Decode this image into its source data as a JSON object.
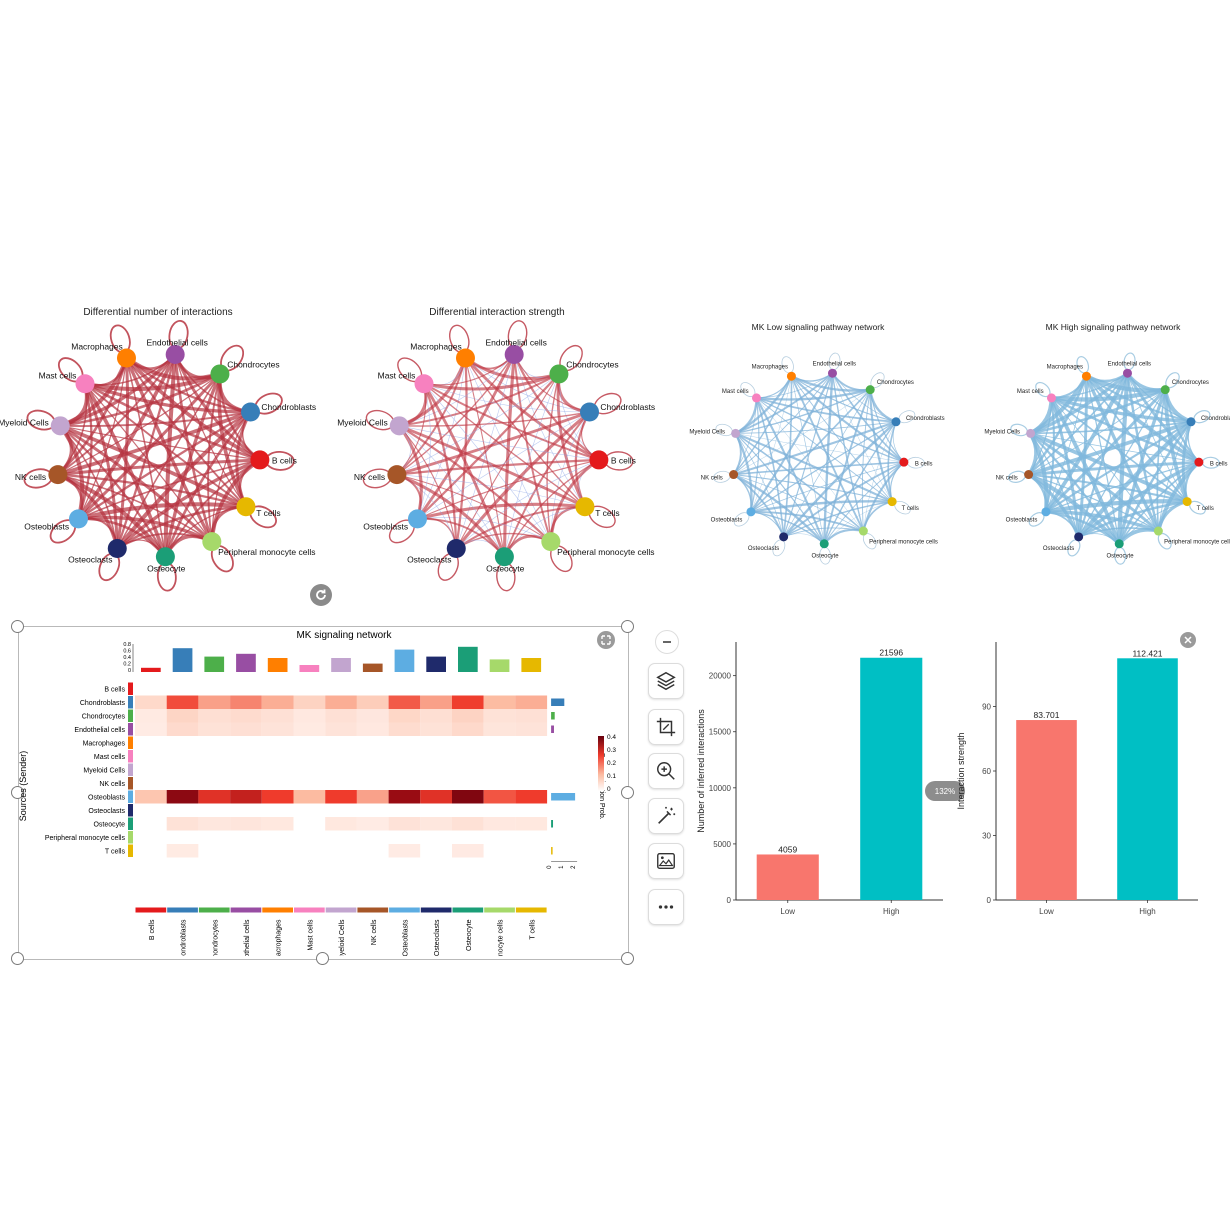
{
  "network1": {
    "title": "Differential number of interactions"
  },
  "network2": {
    "title": "Differential interaction strength"
  },
  "network3": {
    "title": "MK Low signaling pathway network"
  },
  "network4": {
    "title": "MK High signaling pathway network"
  },
  "cell_types": [
    {
      "name": "B cells",
      "color": "#e41a1c"
    },
    {
      "name": "Chondroblasts",
      "color": "#377eb8"
    },
    {
      "name": "Chondrocytes",
      "color": "#4daf4a"
    },
    {
      "name": "Endothelial cells",
      "color": "#984ea3"
    },
    {
      "name": "Macrophages",
      "color": "#ff7f00"
    },
    {
      "name": "Mast cells",
      "color": "#f781bf"
    },
    {
      "name": "Myeloid Cells",
      "color": "#c2a5cf"
    },
    {
      "name": "NK cells",
      "color": "#a65628"
    },
    {
      "name": "Osteoblasts",
      "color": "#5dade2"
    },
    {
      "name": "Osteoclasts",
      "color": "#1f2a6b"
    },
    {
      "name": "Osteocyte",
      "color": "#1b9e77"
    },
    {
      "name": "Peripheral monocyte cells",
      "color": "#a6d96a"
    },
    {
      "name": "T cells",
      "color": "#e6b800"
    }
  ],
  "heatmap": {
    "title": "MK signaling network",
    "ylabel": "Sources (Sender)",
    "legend_title": "Communication Prob.",
    "legend_ticks": [
      "0.4",
      "0.3",
      "0.2",
      "0.1",
      "0"
    ],
    "top_axis_ticks": [
      "0.8",
      "0.6",
      "0.4",
      "0.2",
      "0"
    ],
    "right_axis_ticks": [
      "0",
      "1",
      "2"
    ]
  },
  "toolbar": {
    "buttons": [
      "minus-icon",
      "layers-icon",
      "crop-icon",
      "zoom-in-icon",
      "magic-wand-icon",
      "image-edit-icon",
      "more-icon"
    ],
    "zoom_badge": "132%"
  },
  "chart_data": [
    {
      "type": "bar",
      "title": "",
      "categories": [
        "Low",
        "High"
      ],
      "values": [
        4059,
        21596
      ],
      "value_labels": [
        "4059",
        "21596"
      ],
      "colors": [
        "#f8766d",
        "#00bfc4"
      ],
      "xlabel": "",
      "ylabel": "Number of inferred interactions",
      "yticks": [
        "0",
        "5000",
        "10000",
        "15000",
        "20000"
      ],
      "ylim": [
        0,
        23000
      ]
    },
    {
      "type": "bar",
      "title": "",
      "categories": [
        "Low",
        "High"
      ],
      "values": [
        83.701,
        112.421
      ],
      "value_labels": [
        "83.701",
        "112.421"
      ],
      "colors": [
        "#f8766d",
        "#00bfc4"
      ],
      "xlabel": "",
      "ylabel": "Interaction strength",
      "yticks": [
        "0",
        "30",
        "60",
        "90"
      ],
      "ylim": [
        0,
        120
      ]
    }
  ]
}
